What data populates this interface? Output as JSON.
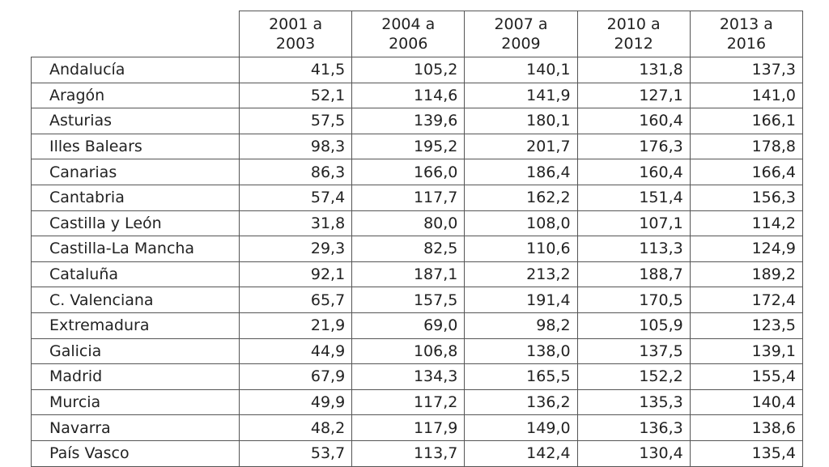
{
  "table": {
    "columns": [
      "2001 a\n2003",
      "2004 a\n2006",
      "2007 a\n2009",
      "2010 a\n2012",
      "2013 a\n2016"
    ],
    "rows": [
      [
        "Andalucía",
        "41,5",
        "105,2",
        "140,1",
        "131,8",
        "137,3"
      ],
      [
        "Aragón",
        "52,1",
        "114,6",
        "141,9",
        "127,1",
        "141,0"
      ],
      [
        "Asturias",
        "57,5",
        "139,6",
        "180,1",
        "160,4",
        "166,1"
      ],
      [
        "Illes Balears",
        "98,3",
        "195,2",
        "201,7",
        "176,3",
        "178,8"
      ],
      [
        "Canarias",
        "86,3",
        "166,0",
        "186,4",
        "160,4",
        "166,4"
      ],
      [
        "Cantabria",
        "57,4",
        "117,7",
        "162,2",
        "151,4",
        "156,3"
      ],
      [
        "Castilla y León",
        "31,8",
        "80,0",
        "108,0",
        "107,1",
        "114,2"
      ],
      [
        "Castilla-La Mancha",
        "29,3",
        "82,5",
        "110,6",
        "113,3",
        "124,9"
      ],
      [
        "Cataluña",
        "92,1",
        "187,1",
        "213,2",
        "188,7",
        "189,2"
      ],
      [
        "C. Valenciana",
        "65,7",
        "157,5",
        "191,4",
        "170,5",
        "172,4"
      ],
      [
        "Extremadura",
        "21,9",
        "69,0",
        "98,2",
        "105,9",
        "123,5"
      ],
      [
        "Galicia",
        "44,9",
        "106,8",
        "138,0",
        "137,5",
        "139,1"
      ],
      [
        "Madrid",
        "67,9",
        "134,3",
        "165,5",
        "152,2",
        "155,4"
      ],
      [
        "Murcia",
        "49,9",
        "117,2",
        "136,2",
        "135,3",
        "140,4"
      ],
      [
        "Navarra",
        "48,2",
        "117,9",
        "149,0",
        "136,3",
        "138,6"
      ],
      [
        "País Vasco",
        "53,7",
        "113,7",
        "142,4",
        "130,4",
        "135,4"
      ]
    ]
  }
}
